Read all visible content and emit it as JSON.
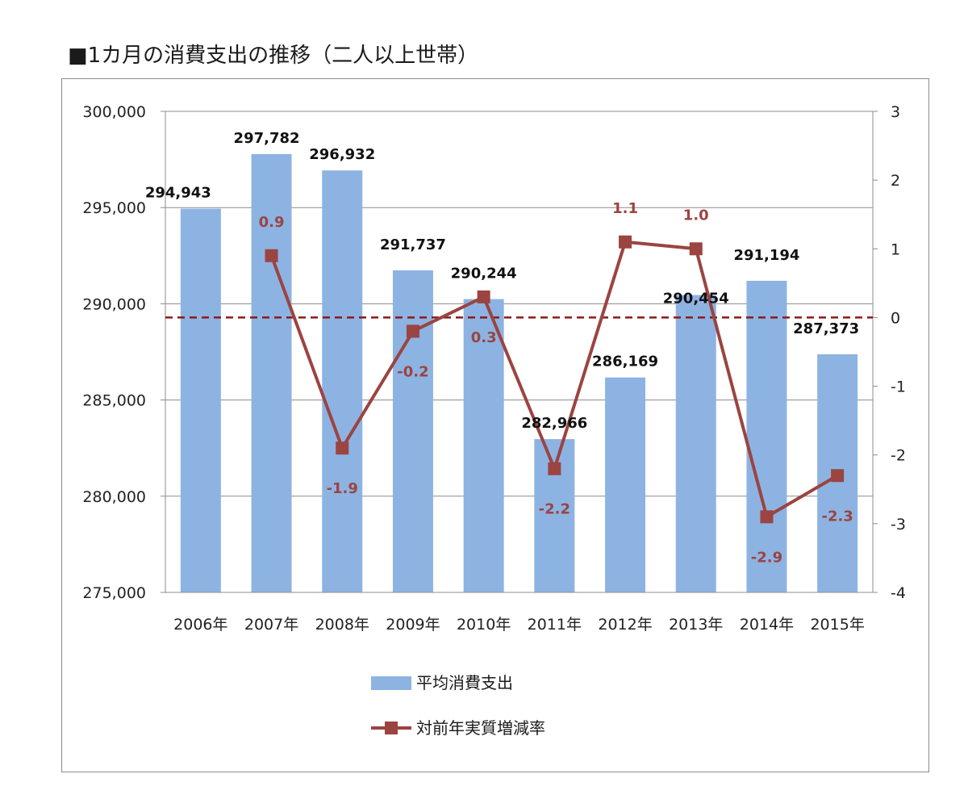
{
  "title": "■1カ月の消費支出の推移（二人以上世帯）",
  "chart_data": {
    "type": "bar",
    "categories": [
      "2006年",
      "2007年",
      "2008年",
      "2009年",
      "2010年",
      "2011年",
      "2012年",
      "2013年",
      "2014年",
      "2015年"
    ],
    "series": [
      {
        "name": "平均消費支出",
        "type": "bar",
        "axis": "left",
        "color": "#8db3e2",
        "values": [
          294943,
          297782,
          296932,
          291737,
          290244,
          282966,
          286169,
          290454,
          291194,
          287373
        ],
        "labels": [
          "294,943",
          "297,782",
          "296,932",
          "291,737",
          "290,244",
          "282,966",
          "286,169",
          "290,454",
          "291,194",
          "287,373"
        ]
      },
      {
        "name": "対前年実質増減率",
        "type": "line",
        "axis": "right",
        "color": "#9b4441",
        "values": [
          null,
          0.9,
          -1.9,
          -0.2,
          0.3,
          -2.2,
          1.1,
          1.0,
          -2.9,
          -2.3
        ],
        "labels": [
          "",
          "0.9",
          "-1.9",
          "-0.2",
          "0.3",
          "-2.2",
          "1.1",
          "1.0",
          "-2.9",
          "-2.3"
        ]
      }
    ],
    "ylim_left": [
      275000,
      300000
    ],
    "yticks_left": [
      "275,000",
      "280,000",
      "285,000",
      "290,000",
      "295,000",
      "300,000"
    ],
    "ylim_right": [
      -4,
      3
    ],
    "yticks_right": [
      "-4",
      "-3",
      "-2",
      "-1",
      "0",
      "1",
      "2",
      "3"
    ],
    "reference_line": {
      "axis": "right",
      "value": 0,
      "style": "dashed",
      "color": "#8b1a1a"
    },
    "grid": true,
    "legend_position": "bottom-center"
  }
}
